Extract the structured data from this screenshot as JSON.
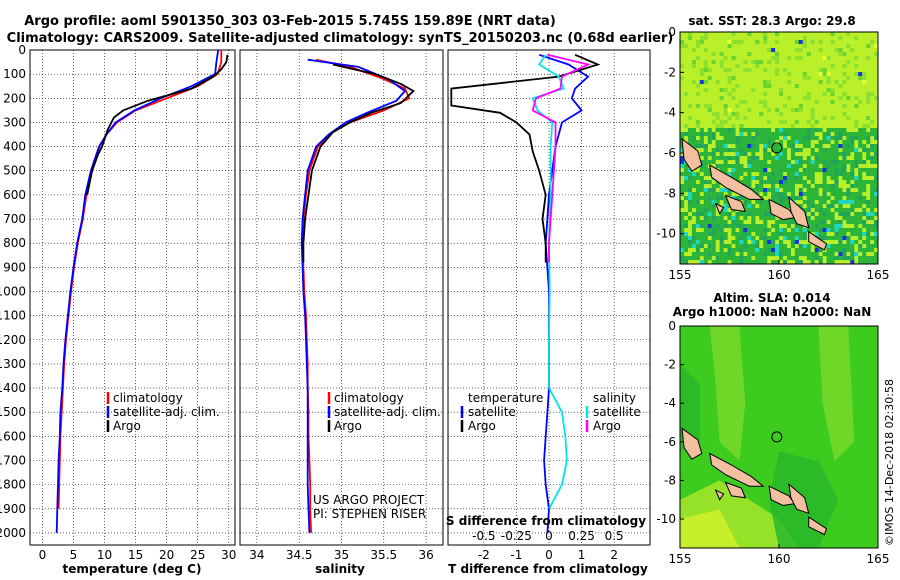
{
  "header": {
    "title_line1": "Argo profile: aoml 5901350_303 03-Feb-2015 5.745S 159.89E (NRT data)",
    "title_line2": "Climatology: CARS2009. Satellite-adjusted climatology: synTS_20150203.nc (0.68d earlier)"
  },
  "credits": {
    "line1": "US ARGO PROJECT",
    "line2": "PI: STEPHEN RISER",
    "timestamp": "©IMOS 14-Dec-2018 02:30:58"
  },
  "colors": {
    "climatology": "#ff0000",
    "satellite": "#0000ff",
    "argo": "#000000",
    "sat_salinity": "#00e5e5",
    "argo_salinity": "#ff00ff"
  },
  "chart_data": [
    {
      "type": "line",
      "id": "temperature",
      "xlabel": "temperature (deg C)",
      "ylabel": "",
      "xlim": [
        -2,
        31
      ],
      "ylim": [
        2050,
        0
      ],
      "x_ticks": [
        0,
        5,
        10,
        15,
        20,
        25,
        30
      ],
      "y_ticks": [
        0,
        100,
        200,
        300,
        400,
        500,
        600,
        700,
        800,
        900,
        1000,
        1100,
        1200,
        1300,
        1400,
        1500,
        1600,
        1700,
        1800,
        1900,
        2000
      ],
      "legend": [
        "climatology",
        "satellite-adj. clim.",
        "Argo"
      ],
      "series": [
        {
          "name": "climatology",
          "color": "#ff0000",
          "points": [
            [
              28.8,
              0
            ],
            [
              28.8,
              50
            ],
            [
              28.2,
              100
            ],
            [
              25,
              150
            ],
            [
              20,
              200
            ],
            [
              15,
              250
            ],
            [
              12,
              300
            ],
            [
              10.3,
              350
            ],
            [
              9.2,
              400
            ],
            [
              8,
              500
            ],
            [
              7.1,
              600
            ],
            [
              6.5,
              700
            ],
            [
              5.7,
              800
            ],
            [
              5.1,
              900
            ],
            [
              4.6,
              1000
            ],
            [
              4.2,
              1100
            ],
            [
              3.8,
              1200
            ],
            [
              3.5,
              1300
            ],
            [
              3.3,
              1400
            ],
            [
              3.1,
              1500
            ],
            [
              2.9,
              1600
            ],
            [
              2.8,
              1700
            ],
            [
              2.7,
              1800
            ],
            [
              2.6,
              1900
            ]
          ]
        },
        {
          "name": "satellite-adj. clim.",
          "color": "#0000ff",
          "points": [
            [
              28.3,
              0
            ],
            [
              28,
              50
            ],
            [
              27.8,
              100
            ],
            [
              24,
              150
            ],
            [
              19,
              200
            ],
            [
              14.8,
              250
            ],
            [
              11.8,
              300
            ],
            [
              10.3,
              350
            ],
            [
              9.1,
              400
            ],
            [
              7.8,
              500
            ],
            [
              6.9,
              600
            ],
            [
              6.4,
              700
            ],
            [
              5.6,
              800
            ],
            [
              5,
              900
            ],
            [
              4.5,
              1000
            ],
            [
              4.1,
              1100
            ],
            [
              3.7,
              1200
            ],
            [
              3.4,
              1300
            ],
            [
              3.2,
              1400
            ],
            [
              2.9,
              1500
            ],
            [
              2.8,
              1600
            ],
            [
              2.6,
              1700
            ],
            [
              2.5,
              1800
            ],
            [
              2.4,
              1900
            ],
            [
              2.3,
              2000
            ]
          ]
        },
        {
          "name": "Argo",
          "color": "#000000",
          "points": [
            [
              29.8,
              20
            ],
            [
              29.6,
              50
            ],
            [
              28.8,
              80
            ],
            [
              27.5,
              110
            ],
            [
              24,
              160
            ],
            [
              17,
              210
            ],
            [
              13,
              250
            ],
            [
              11.5,
              280
            ],
            [
              10.5,
              330
            ],
            [
              9.6,
              400
            ],
            [
              9,
              430
            ],
            [
              8,
              500
            ],
            [
              7.2,
              600
            ]
          ]
        }
      ]
    },
    {
      "type": "line",
      "id": "salinity",
      "xlabel": "salinity",
      "ylabel": "",
      "xlim": [
        33.8,
        36.2
      ],
      "ylim": [
        2050,
        0
      ],
      "x_ticks": [
        34,
        34.5,
        35,
        35.5,
        36
      ],
      "legend": [
        "climatology",
        "satellite-adj. clim.",
        "Argo"
      ],
      "series": [
        {
          "name": "climatology",
          "color": "#ff0000",
          "points": [
            [
              34.7,
              40
            ],
            [
              35.1,
              70
            ],
            [
              35.5,
              120
            ],
            [
              35.75,
              160
            ],
            [
              35.8,
              200
            ],
            [
              35.5,
              250
            ],
            [
              35.1,
              300
            ],
            [
              34.85,
              350
            ],
            [
              34.72,
              400
            ],
            [
              34.62,
              500
            ],
            [
              34.58,
              600
            ],
            [
              34.55,
              700
            ],
            [
              34.54,
              800
            ],
            [
              34.55,
              900
            ],
            [
              34.56,
              1000
            ],
            [
              34.58,
              1100
            ],
            [
              34.59,
              1200
            ],
            [
              34.6,
              1300
            ],
            [
              34.6,
              1400
            ],
            [
              34.61,
              1500
            ],
            [
              34.61,
              1600
            ],
            [
              34.62,
              1700
            ],
            [
              34.63,
              1800
            ],
            [
              34.63,
              1900
            ],
            [
              34.64,
              2000
            ]
          ]
        },
        {
          "name": "satellite-adj. clim.",
          "color": "#0000ff",
          "points": [
            [
              34.6,
              40
            ],
            [
              35.2,
              70
            ],
            [
              35.55,
              120
            ],
            [
              35.75,
              170
            ],
            [
              35.65,
              210
            ],
            [
              35.3,
              260
            ],
            [
              35.05,
              300
            ],
            [
              34.85,
              350
            ],
            [
              34.7,
              400
            ],
            [
              34.6,
              500
            ],
            [
              34.57,
              600
            ],
            [
              34.54,
              700
            ],
            [
              34.53,
              800
            ],
            [
              34.54,
              900
            ],
            [
              34.55,
              1000
            ],
            [
              34.57,
              1100
            ],
            [
              34.58,
              1200
            ],
            [
              34.59,
              1300
            ],
            [
              34.6,
              1400
            ],
            [
              34.6,
              1500
            ],
            [
              34.6,
              1600
            ],
            [
              34.6,
              1700
            ],
            [
              34.6,
              1800
            ],
            [
              34.61,
              1900
            ],
            [
              34.62,
              2000
            ]
          ]
        },
        {
          "name": "Argo",
          "color": "#000000",
          "points": [
            [
              34.9,
              60
            ],
            [
              35.4,
              100
            ],
            [
              35.7,
              140
            ],
            [
              35.85,
              170
            ],
            [
              35.7,
              220
            ],
            [
              35.35,
              260
            ],
            [
              35.1,
              300
            ],
            [
              34.9,
              340
            ],
            [
              34.75,
              400
            ],
            [
              34.65,
              500
            ],
            [
              34.57,
              700
            ],
            [
              34.55,
              800
            ],
            [
              34.55,
              880
            ]
          ]
        }
      ]
    },
    {
      "type": "line",
      "id": "differences",
      "xlabel": "T difference from climatology",
      "xlabel_top": "S difference from climatology",
      "ylabel": "",
      "xlim": [
        -3.1,
        3.1
      ],
      "ylim": [
        2050,
        0
      ],
      "x_ticks": [
        -2,
        -1,
        0,
        1,
        2
      ],
      "x_ticks_top": [
        "-0.5",
        "-0.25",
        "0",
        "0.25",
        "0.5"
      ],
      "legend_left_title": "temperature",
      "legend_left": [
        "satellite",
        "Argo"
      ],
      "legend_right_title": "salinity",
      "legend_right": [
        "satellite",
        "Argo"
      ],
      "series": [
        {
          "name": "T satellite",
          "color": "#0000ff",
          "points": [
            [
              -0.3,
              20
            ],
            [
              0.6,
              60
            ],
            [
              1.2,
              110
            ],
            [
              0.8,
              160
            ],
            [
              0.7,
              200
            ],
            [
              1,
              250
            ],
            [
              0.4,
              300
            ],
            [
              0.2,
              400
            ],
            [
              0,
              600
            ],
            [
              -0.1,
              800
            ],
            [
              0,
              1000
            ],
            [
              0,
              1200
            ],
            [
              0,
              1400
            ],
            [
              -0.05,
              1500
            ],
            [
              -0.1,
              1600
            ],
            [
              -0.15,
              1700
            ],
            [
              -0.1,
              1800
            ],
            [
              0,
              1900
            ],
            [
              -0.05,
              2000
            ]
          ]
        },
        {
          "name": "T Argo",
          "color": "#000000",
          "points": [
            [
              0.8,
              20
            ],
            [
              1.5,
              60
            ],
            [
              0.3,
              110
            ],
            [
              -3,
              160
            ],
            [
              -3,
              230
            ],
            [
              -1.5,
              260
            ],
            [
              -1,
              300
            ],
            [
              -0.6,
              350
            ],
            [
              -0.5,
              420
            ],
            [
              -0.3,
              500
            ],
            [
              -0.1,
              600
            ],
            [
              -0.2,
              700
            ],
            [
              -0.1,
              800
            ],
            [
              -0.1,
              880
            ]
          ]
        },
        {
          "name": "S satellite",
          "color": "#00e5e5",
          "points": [
            [
              -0.1,
              20
            ],
            [
              -0.3,
              60
            ],
            [
              0.3,
              110
            ],
            [
              0.45,
              160
            ],
            [
              -0.5,
              200
            ],
            [
              -0.35,
              250
            ],
            [
              0.1,
              300
            ],
            [
              0.05,
              400
            ],
            [
              0.05,
              600
            ],
            [
              0,
              800
            ],
            [
              0.02,
              1000
            ],
            [
              0,
              1200
            ],
            [
              0,
              1400
            ],
            [
              0.4,
              1500
            ],
            [
              0.5,
              1600
            ],
            [
              0.55,
              1700
            ],
            [
              0.4,
              1800
            ],
            [
              0,
              1900
            ]
          ]
        },
        {
          "name": "S Argo",
          "color": "#ff00ff",
          "points": [
            [
              -0.05,
              20
            ],
            [
              1.2,
              60
            ],
            [
              0.4,
              110
            ],
            [
              0.35,
              160
            ],
            [
              -0.4,
              200
            ],
            [
              -0.5,
              250
            ],
            [
              0.2,
              300
            ],
            [
              0.2,
              400
            ],
            [
              0.1,
              600
            ],
            [
              0,
              800
            ],
            [
              0,
              880
            ]
          ]
        }
      ]
    }
  ],
  "maps": [
    {
      "id": "sst-map",
      "title": "sat. SST: 28.3 Argo: 29.8",
      "x_ticks": [
        155,
        160,
        165
      ],
      "y_ticks": [
        0,
        -2,
        -4,
        -6,
        -8,
        -10
      ],
      "xlim": [
        155,
        165
      ],
      "ylim": [
        -11.5,
        0
      ],
      "argo_position": [
        159.89,
        -5.745
      ]
    },
    {
      "id": "sla-map",
      "title_line1": "Altim. SLA: 0.014",
      "title_line2": "Argo h1000: NaN h2000: NaN",
      "x_ticks": [
        155,
        160,
        165
      ],
      "y_ticks": [
        0,
        -2,
        -4,
        -6,
        -8,
        -10
      ],
      "xlim": [
        155,
        165
      ],
      "ylim": [
        -11.5,
        0
      ],
      "argo_position": [
        159.89,
        -5.745
      ]
    }
  ]
}
